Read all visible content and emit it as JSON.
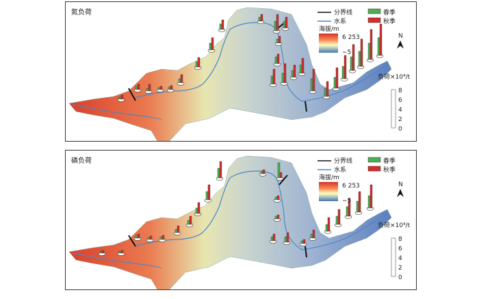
{
  "panels": [
    {
      "title": "氮负荷",
      "legend": {
        "boundary": "分界线",
        "river": "水系",
        "spring": "春季",
        "autumn": "秋季"
      },
      "elevation": {
        "label": "海拔/m",
        "max": "6 253",
        "min": "−5"
      },
      "load": {
        "label": "负荷×10⁴/t",
        "ticks": [
          "8",
          "6",
          "4",
          "2",
          "0"
        ]
      },
      "north": "N"
    },
    {
      "title": "磷负荷",
      "legend": {
        "boundary": "分界线",
        "river": "水系",
        "spring": "春季",
        "autumn": "秋季"
      },
      "elevation": {
        "label": "海拔/m",
        "max": "6 253",
        "min": "−5"
      },
      "load": {
        "label": "负荷×10⁴/t",
        "ticks": [
          "8",
          "6",
          "4",
          "2",
          "0"
        ]
      },
      "north": "N"
    }
  ],
  "colors": {
    "spring": "#4caf50",
    "autumn": "#d62c2c",
    "river": "#4a86c8",
    "boundary": "#111111"
  }
}
